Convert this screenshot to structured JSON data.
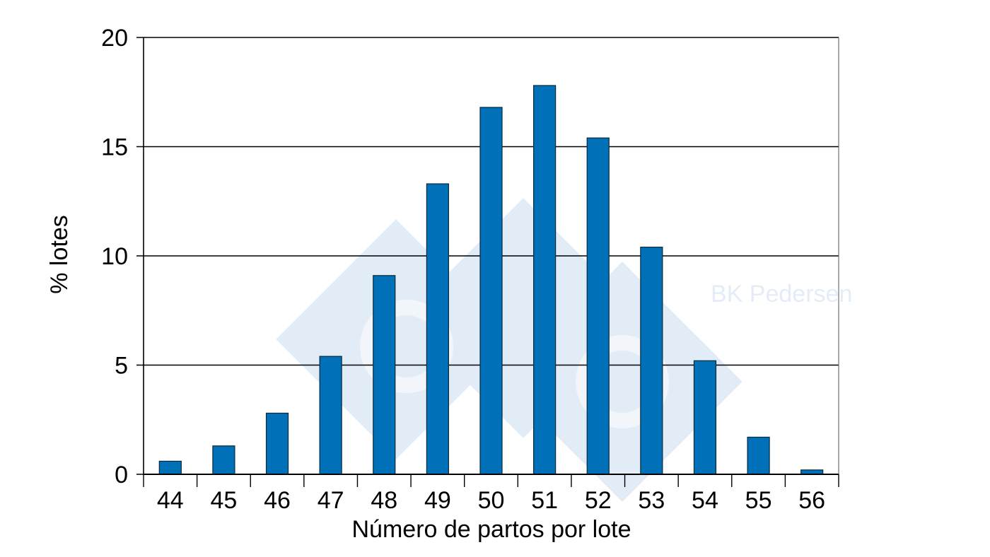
{
  "chart_data": {
    "type": "bar",
    "categories": [
      "44",
      "45",
      "46",
      "47",
      "48",
      "49",
      "50",
      "51",
      "52",
      "53",
      "54",
      "55",
      "56"
    ],
    "values": [
      0.6,
      1.3,
      2.8,
      5.4,
      9.1,
      13.3,
      16.8,
      17.8,
      15.4,
      10.4,
      5.2,
      1.7,
      0.2
    ],
    "title": "",
    "xlabel": "Número de partos por lote",
    "ylabel": "% lotes",
    "ylim": [
      0,
      20
    ],
    "yticks": [
      "0",
      "5",
      "10",
      "15",
      "20"
    ],
    "grid": true,
    "bar_color": "#0070b8",
    "bar_edge_color": "#0a2a3a"
  },
  "watermark": {
    "text": "BK Pedersen",
    "logo_color": "#e2ecf6"
  }
}
